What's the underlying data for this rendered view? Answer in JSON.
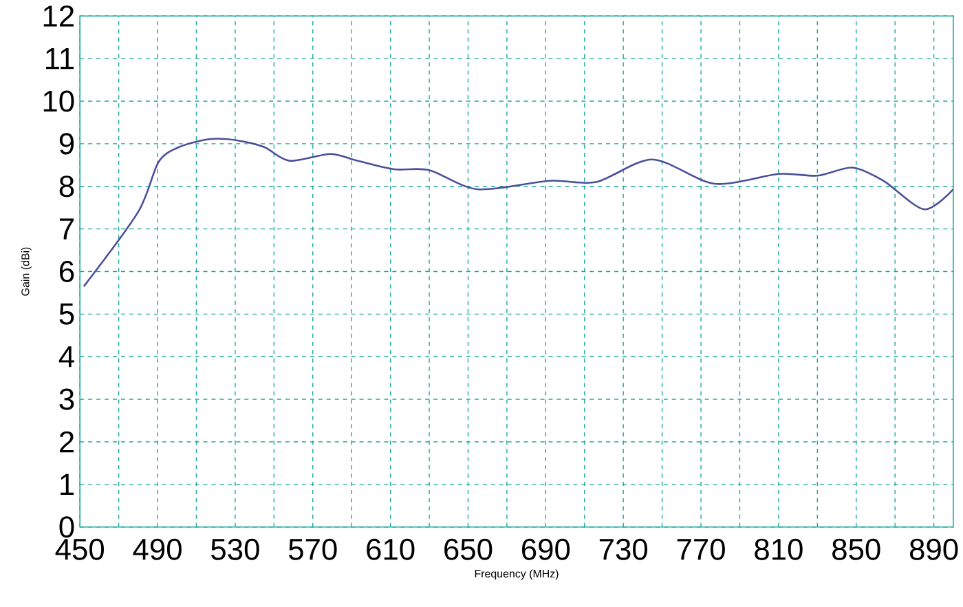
{
  "chart_data": {
    "type": "line",
    "xlabel": "Frequency (MHz)",
    "ylabel": "Gain (dBi)",
    "xlim": [
      450,
      900
    ],
    "ylim": [
      0,
      12
    ],
    "xticks": [
      450,
      {
        "value": 470,
        "label": null
      },
      490,
      {
        "value": 510,
        "label": null
      },
      530,
      {
        "value": 550,
        "label": null
      },
      570,
      {
        "value": 590,
        "label": null
      },
      610,
      {
        "value": 630,
        "label": null
      },
      650,
      {
        "value": 670,
        "label": null
      },
      690,
      {
        "value": 710,
        "label": null
      },
      730,
      {
        "value": 750,
        "label": null
      },
      770,
      {
        "value": 790,
        "label": null
      },
      810,
      {
        "value": 830,
        "label": null
      },
      850,
      {
        "value": 870,
        "label": null
      },
      890
    ],
    "yticks": [
      0,
      1,
      2,
      3,
      4,
      5,
      6,
      7,
      8,
      9,
      10,
      11,
      12
    ],
    "grid": true,
    "marker": "none",
    "line_style": "solid",
    "series": [
      {
        "color": "#4a4f9a",
        "x": [
          452,
          480,
          490.5,
          501,
          517,
          531,
          545,
          558,
          579,
          593,
          612,
          630,
          655,
          692,
          716,
          745,
          777,
          810,
          830,
          848,
          864,
          885,
          900
        ],
        "values": [
          5.65,
          7.4,
          8.57,
          8.92,
          9.11,
          9.08,
          8.92,
          8.6,
          8.76,
          8.6,
          8.4,
          8.38,
          7.93,
          8.13,
          8.1,
          8.63,
          8.06,
          8.29,
          8.25,
          8.44,
          8.13,
          7.46,
          7.93
        ]
      }
    ]
  }
}
